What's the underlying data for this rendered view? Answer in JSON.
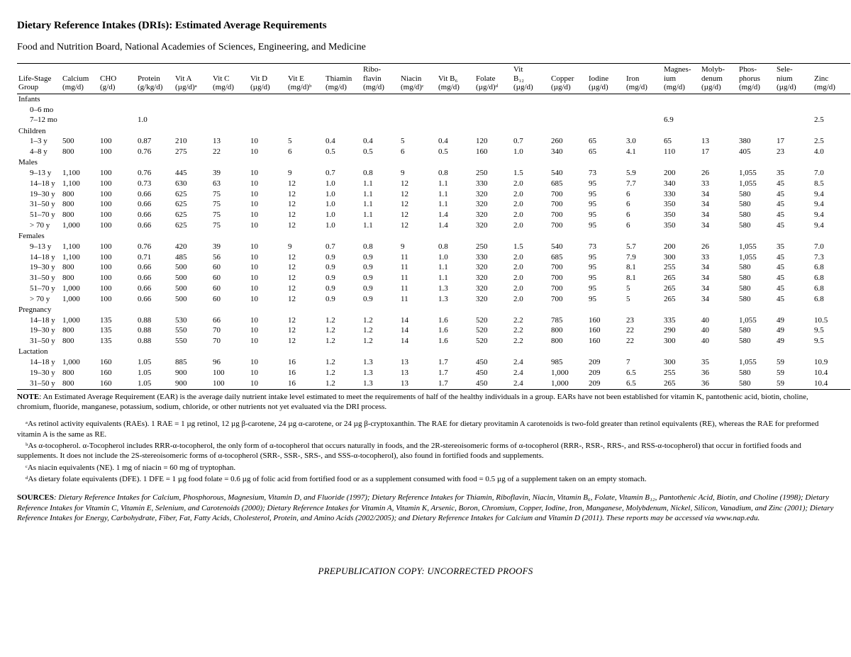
{
  "title": "Dietary Reference Intakes (DRIs): Estimated Average Requirements",
  "subtitle": "Food and Nutrition Board, National Academies of Sciences, Engineering, and Medicine",
  "columns": [
    {
      "l1": "Life-Stage",
      "l2": "Group"
    },
    {
      "l1": "Calcium",
      "l2": "(mg/d)"
    },
    {
      "l1": "CHO",
      "l2": "(g/d)"
    },
    {
      "l1": "Protein",
      "l2": "(g/kg/d)"
    },
    {
      "l1": "Vit A",
      "l2": "(µg/d)ᵃ"
    },
    {
      "l1": "Vit C",
      "l2": "(mg/d)"
    },
    {
      "l1": "Vit D",
      "l2": "(µg/d)"
    },
    {
      "l1": "Vit E",
      "l2": "(mg/d)ᵇ"
    },
    {
      "l1": "Thiamin",
      "l2": "(mg/d)"
    },
    {
      "l1": "Ribo-\nflavin",
      "l2": "(mg/d)"
    },
    {
      "l1": "Niacin",
      "l2": "(mg/d)ᶜ"
    },
    {
      "l1": "Vit B₆",
      "l2": "(mg/d)"
    },
    {
      "l1": "Folate",
      "l2": "(µg/d)ᵈ"
    },
    {
      "l1": "Vit\nB₁₂",
      "l2": "(µg/d)"
    },
    {
      "l1": "Copper",
      "l2": "(µg/d)"
    },
    {
      "l1": "Iodine",
      "l2": "(µg/d)"
    },
    {
      "l1": "Iron",
      "l2": "(mg/d)"
    },
    {
      "l1": "Magnes-\nium",
      "l2": "(mg/d)"
    },
    {
      "l1": "Molyb-\ndenum",
      "l2": "(µg/d)"
    },
    {
      "l1": "Phos-\nphorus",
      "l2": "(mg/d)"
    },
    {
      "l1": "Sele-\nnium",
      "l2": "(µg/d)"
    },
    {
      "l1": "Zinc",
      "l2": "(mg/d)"
    }
  ],
  "sections": [
    {
      "name": "Infants",
      "rows": [
        {
          "label": "0–6 mo",
          "v": [
            "",
            "",
            "",
            "",
            "",
            "",
            "",
            "",
            "",
            "",
            "",
            "",
            "",
            "",
            "",
            "",
            "",
            "",
            "",
            "",
            ""
          ]
        },
        {
          "label": "7–12 mo",
          "v": [
            "",
            "",
            "1.0",
            "",
            "",
            "",
            "",
            "",
            "",
            "",
            "",
            "",
            "",
            "",
            "",
            "",
            "6.9",
            "",
            "",
            "",
            "2.5"
          ]
        }
      ]
    },
    {
      "name": "Children",
      "rows": [
        {
          "label": "1–3 y",
          "v": [
            "500",
            "100",
            "0.87",
            "210",
            "13",
            "10",
            "5",
            "0.4",
            "0.4",
            "5",
            "0.4",
            "120",
            "0.7",
            "260",
            "65",
            "3.0",
            "65",
            "13",
            "380",
            "17",
            "2.5"
          ]
        },
        {
          "label": "4–8 y",
          "v": [
            "800",
            "100",
            "0.76",
            "275",
            "22",
            "10",
            "6",
            "0.5",
            "0.5",
            "6",
            "0.5",
            "160",
            "1.0",
            "340",
            "65",
            "4.1",
            "110",
            "17",
            "405",
            "23",
            "4.0"
          ]
        }
      ]
    },
    {
      "name": "Males",
      "rows": [
        {
          "label": "9–13 y",
          "v": [
            "1,100",
            "100",
            "0.76",
            "445",
            "39",
            "10",
            "9",
            "0.7",
            "0.8",
            "9",
            "0.8",
            "250",
            "1.5",
            "540",
            "73",
            "5.9",
            "200",
            "26",
            "1,055",
            "35",
            "7.0"
          ]
        },
        {
          "label": "14–18 y",
          "v": [
            "1,100",
            "100",
            "0.73",
            "630",
            "63",
            "10",
            "12",
            "1.0",
            "1.1",
            "12",
            "1.1",
            "330",
            "2.0",
            "685",
            "95",
            "7.7",
            "340",
            "33",
            "1,055",
            "45",
            "8.5"
          ]
        },
        {
          "label": "19–30 y",
          "v": [
            "800",
            "100",
            "0.66",
            "625",
            "75",
            "10",
            "12",
            "1.0",
            "1.1",
            "12",
            "1.1",
            "320",
            "2.0",
            "700",
            "95",
            "6",
            "330",
            "34",
            "580",
            "45",
            "9.4"
          ]
        },
        {
          "label": "31–50 y",
          "v": [
            "800",
            "100",
            "0.66",
            "625",
            "75",
            "10",
            "12",
            "1.0",
            "1.1",
            "12",
            "1.1",
            "320",
            "2.0",
            "700",
            "95",
            "6",
            "350",
            "34",
            "580",
            "45",
            "9.4"
          ]
        },
        {
          "label": "51–70 y",
          "v": [
            "800",
            "100",
            "0.66",
            "625",
            "75",
            "10",
            "12",
            "1.0",
            "1.1",
            "12",
            "1.4",
            "320",
            "2.0",
            "700",
            "95",
            "6",
            "350",
            "34",
            "580",
            "45",
            "9.4"
          ]
        },
        {
          "label": "> 70 y",
          "v": [
            "1,000",
            "100",
            "0.66",
            "625",
            "75",
            "10",
            "12",
            "1.0",
            "1.1",
            "12",
            "1.4",
            "320",
            "2.0",
            "700",
            "95",
            "6",
            "350",
            "34",
            "580",
            "45",
            "9.4"
          ]
        }
      ]
    },
    {
      "name": "Females",
      "rows": [
        {
          "label": "9–13 y",
          "v": [
            "1,100",
            "100",
            "0.76",
            "420",
            "39",
            "10",
            "9",
            "0.7",
            "0.8",
            "9",
            "0.8",
            "250",
            "1.5",
            "540",
            "73",
            "5.7",
            "200",
            "26",
            "1,055",
            "35",
            "7.0"
          ]
        },
        {
          "label": "14–18 y",
          "v": [
            "1,100",
            "100",
            "0.71",
            "485",
            "56",
            "10",
            "12",
            "0.9",
            "0.9",
            "11",
            "1.0",
            "330",
            "2.0",
            "685",
            "95",
            "7.9",
            "300",
            "33",
            "1,055",
            "45",
            "7.3"
          ]
        },
        {
          "label": "19–30 y",
          "v": [
            "800",
            "100",
            "0.66",
            "500",
            "60",
            "10",
            "12",
            "0.9",
            "0.9",
            "11",
            "1.1",
            "320",
            "2.0",
            "700",
            "95",
            "8.1",
            "255",
            "34",
            "580",
            "45",
            "6.8"
          ]
        },
        {
          "label": "31–50 y",
          "v": [
            "800",
            "100",
            "0.66",
            "500",
            "60",
            "10",
            "12",
            "0.9",
            "0.9",
            "11",
            "1.1",
            "320",
            "2.0",
            "700",
            "95",
            "8.1",
            "265",
            "34",
            "580",
            "45",
            "6.8"
          ]
        },
        {
          "label": "51–70 y",
          "v": [
            "1,000",
            "100",
            "0.66",
            "500",
            "60",
            "10",
            "12",
            "0.9",
            "0.9",
            "11",
            "1.3",
            "320",
            "2.0",
            "700",
            "95",
            "5",
            "265",
            "34",
            "580",
            "45",
            "6.8"
          ]
        },
        {
          "label": "> 70 y",
          "v": [
            "1,000",
            "100",
            "0.66",
            "500",
            "60",
            "10",
            "12",
            "0.9",
            "0.9",
            "11",
            "1.3",
            "320",
            "2.0",
            "700",
            "95",
            "5",
            "265",
            "34",
            "580",
            "45",
            "6.8"
          ]
        }
      ]
    },
    {
      "name": "Pregnancy",
      "rows": [
        {
          "label": "14–18 y",
          "v": [
            "1,000",
            "135",
            "0.88",
            "530",
            "66",
            "10",
            "12",
            "1.2",
            "1.2",
            "14",
            "1.6",
            "520",
            "2.2",
            "785",
            "160",
            "23",
            "335",
            "40",
            "1,055",
            "49",
            "10.5"
          ]
        },
        {
          "label": "19–30 y",
          "v": [
            "800",
            "135",
            "0.88",
            "550",
            "70",
            "10",
            "12",
            "1.2",
            "1.2",
            "14",
            "1.6",
            "520",
            "2.2",
            "800",
            "160",
            "22",
            "290",
            "40",
            "580",
            "49",
            "9.5"
          ]
        },
        {
          "label": "31–50 y",
          "v": [
            "800",
            "135",
            "0.88",
            "550",
            "70",
            "10",
            "12",
            "1.2",
            "1.2",
            "14",
            "1.6",
            "520",
            "2.2",
            "800",
            "160",
            "22",
            "300",
            "40",
            "580",
            "49",
            "9.5"
          ]
        }
      ]
    },
    {
      "name": "Lactation",
      "rows": [
        {
          "label": "14–18 y",
          "v": [
            "1,000",
            "160",
            "1.05",
            "885",
            "96",
            "10",
            "16",
            "1.2",
            "1.3",
            "13",
            "1.7",
            "450",
            "2.4",
            "985",
            "209",
            "7",
            "300",
            "35",
            "1,055",
            "59",
            "10.9"
          ]
        },
        {
          "label": "19–30 y",
          "v": [
            "800",
            "160",
            "1.05",
            "900",
            "100",
            "10",
            "16",
            "1.2",
            "1.3",
            "13",
            "1.7",
            "450",
            "2.4",
            "1,000",
            "209",
            "6.5",
            "255",
            "36",
            "580",
            "59",
            "10.4"
          ]
        },
        {
          "label": "31–50 y",
          "v": [
            "800",
            "160",
            "1.05",
            "900",
            "100",
            "10",
            "16",
            "1.2",
            "1.3",
            "13",
            "1.7",
            "450",
            "2.4",
            "1,000",
            "209",
            "6.5",
            "265",
            "36",
            "580",
            "59",
            "10.4"
          ]
        }
      ]
    }
  ],
  "note_label": "NOTE",
  "note": ": An Estimated Average Requirement (EAR) is the average daily nutrient intake level estimated to meet the requirements of half of the healthy individuals in a group. EARs have not been established for vitamin K, pantothenic acid, biotin, choline, chromium, fluoride, manganese, potassium, sodium, chloride, or other nutrients not yet evaluated via the DRI process.",
  "footnotes": [
    "ᵃAs retinol activity equivalents (RAEs). 1 RAE = 1 µg retinol, 12 µg β-carotene, 24 µg α-carotene, or 24 µg β-cryptoxanthin. The RAE for dietary provitamin A carotenoids is two-fold greater than retinol equivalents (RE), whereas the RAE for preformed vitamin A is the same as RE.",
    "ᵇAs α-tocopherol. α-Tocopherol includes RRR-α-tocopherol, the only form of α-tocopherol that occurs naturally in foods, and the 2R-stereoisomeric forms of α-tocopherol (RRR-, RSR-, RRS-, and RSS-α-tocopherol) that occur in fortified foods and supplements. It does not include the 2S-stereoisomeric forms of α-tocopherol (SRR-, SSR-, SRS-, and SSS-α-tocopherol), also found in fortified foods and supplements.",
    "ᶜAs niacin equivalents (NE). 1 mg of niacin = 60 mg of tryptophan.",
    "ᵈAs dietary folate equivalents (DFE). 1 DFE = 1 µg food folate = 0.6 µg of folic acid from fortified food or as a supplement consumed with food = 0.5 µg of a supplement taken on an empty stomach."
  ],
  "sources_label": "SOURCES",
  "sources": ": Dietary Reference Intakes for Calcium, Phosphorous, Magnesium, Vitamin D, and Fluoride (1997); Dietary Reference Intakes for Thiamin, Riboflavin, Niacin, Vitamin B₆, Folate, Vitamin B₁₂, Pantothenic Acid, Biotin, and Choline (1998); Dietary Reference Intakes for Vitamin C, Vitamin E, Selenium, and Carotenoids (2000); Dietary Reference Intakes for Vitamin A, Vitamin K, Arsenic, Boron, Chromium, Copper, Iodine, Iron, Manganese, Molybdenum, Nickel, Silicon, Vanadium, and Zinc (2001); Dietary Reference Intakes for Energy, Carbohydrate, Fiber, Fat, Fatty Acids, Cholesterol, Protein, and Amino Acids (2002/2005); and Dietary Reference Intakes for Calcium and Vitamin D (2011). These reports may be accessed via www.nap.edu.",
  "footer": "PREPUBLICATION COPY: UNCORRECTED PROOFS"
}
